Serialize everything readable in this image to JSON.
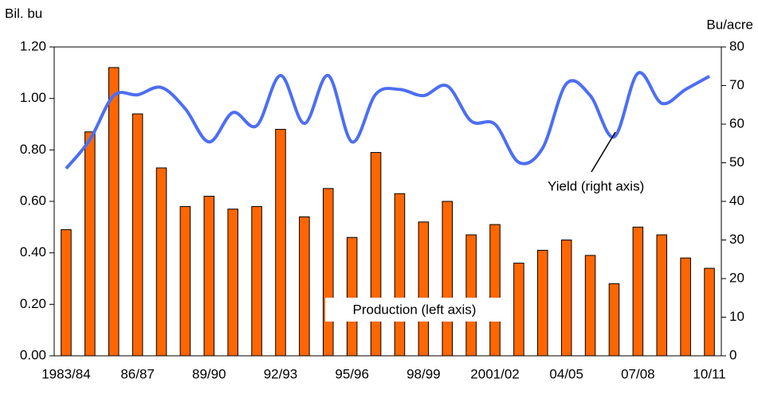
{
  "chart_data": {
    "type": "bar",
    "y_label": "Bil. bu",
    "y2_label": "Bu/acre",
    "categories": [
      "1983/84",
      null,
      null,
      "86/87",
      null,
      null,
      "89/90",
      null,
      null,
      "92/93",
      null,
      null,
      "95/96",
      null,
      null,
      "98/99",
      null,
      null,
      "2001/02",
      null,
      null,
      "04/05",
      null,
      null,
      "07/08",
      null,
      null,
      "10/11"
    ],
    "series": [
      {
        "name": "Production (left axis)",
        "type": "bar",
        "color": "#ff6600",
        "values": [
          0.49,
          0.87,
          1.12,
          0.94,
          0.73,
          0.58,
          0.62,
          0.57,
          0.58,
          0.88,
          0.54,
          0.65,
          0.46,
          0.79,
          0.63,
          0.52,
          0.6,
          0.47,
          0.51,
          0.36,
          0.41,
          0.45,
          0.39,
          0.28,
          0.5,
          0.47,
          0.38,
          0.34
        ]
      },
      {
        "name": "Yield (right axis)",
        "type": "line",
        "axis": "y2",
        "color": "#4d6ef2",
        "values": [
          48.5,
          56,
          67.4,
          67.6,
          69.5,
          64,
          55.4,
          63,
          59.6,
          72.6,
          60.2,
          72.6,
          55.4,
          67.8,
          69,
          67.4,
          69.9,
          60.8,
          60,
          50.1,
          53.8,
          70.5,
          67.4,
          56.7,
          73.2,
          65.4,
          69,
          72.4
        ]
      }
    ],
    "ylim": [
      0,
      1.2
    ],
    "yticks": [
      {
        "value": 0,
        "label": "0.00"
      },
      {
        "value": 0.2,
        "label": "0.20"
      },
      {
        "value": 0.4,
        "label": "0.40"
      },
      {
        "value": 0.6,
        "label": "0.60"
      },
      {
        "value": 0.8,
        "label": "0.80"
      },
      {
        "value": 1.0,
        "label": "1.00"
      },
      {
        "value": 1.2,
        "label": "1.20"
      }
    ],
    "y2lim": [
      0,
      80
    ],
    "y2ticks": [
      0,
      10,
      20,
      30,
      40,
      50,
      60,
      70,
      80
    ]
  }
}
